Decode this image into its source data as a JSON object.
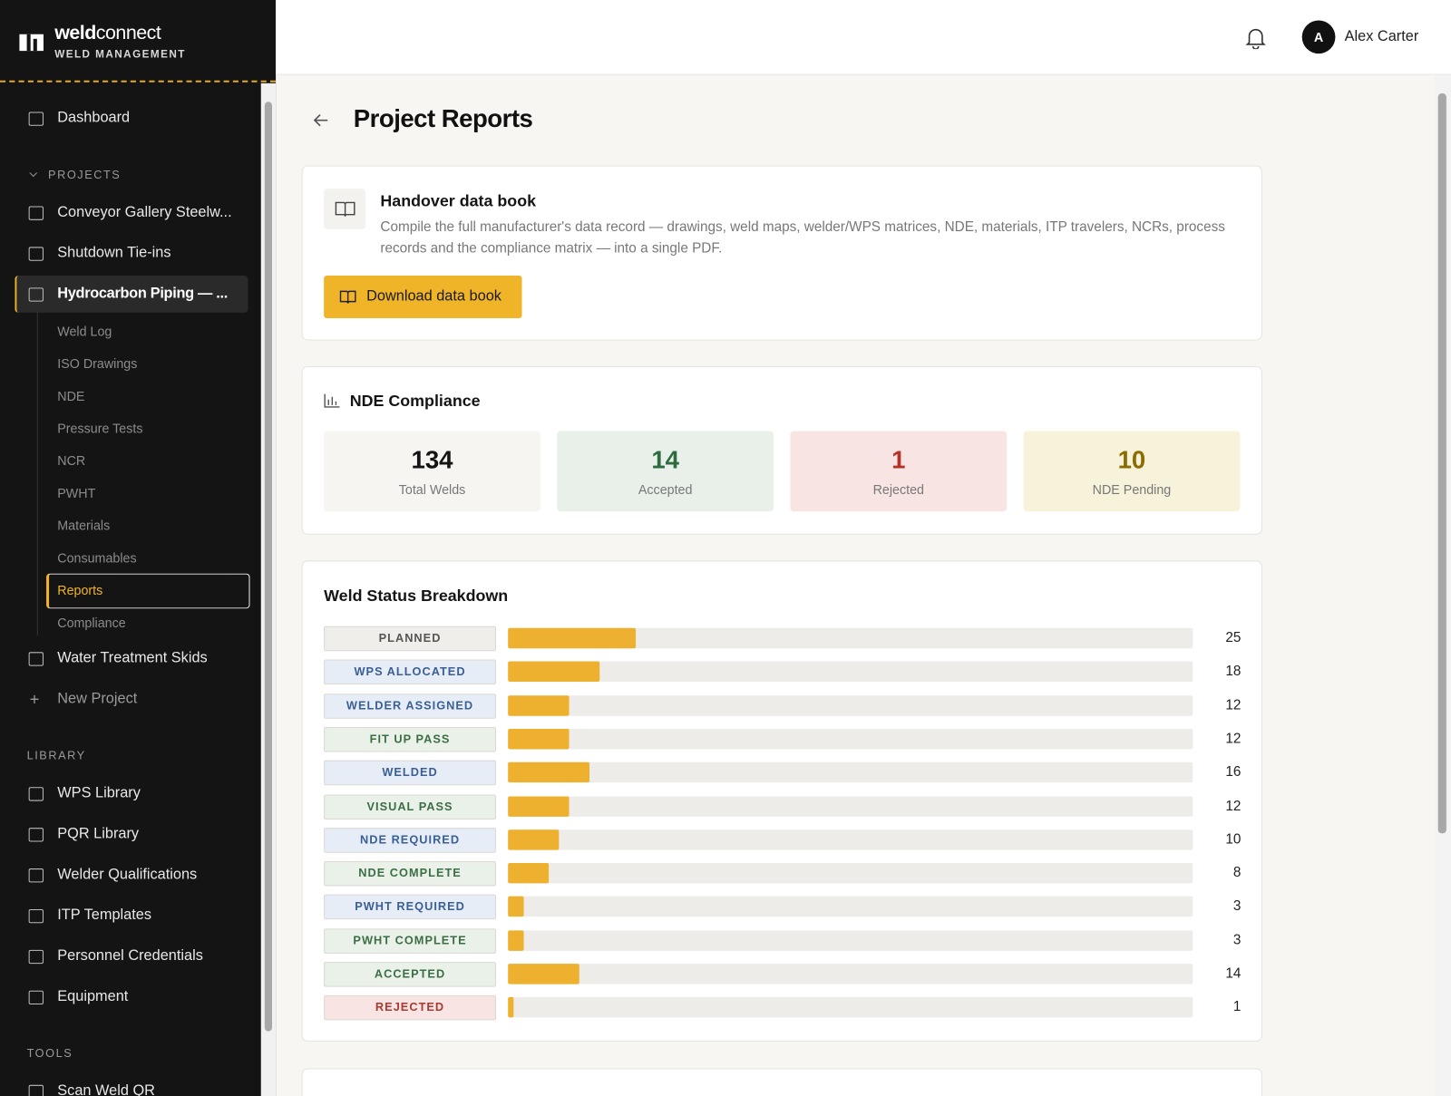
{
  "brand": {
    "name_bold": "weld",
    "name_rest": "connect",
    "subtitle": "WELD MANAGEMENT"
  },
  "user": {
    "initial": "A",
    "name": "Alex Carter"
  },
  "sidebar": {
    "dashboard": "Dashboard",
    "projects_label": "PROJECTS",
    "projects": [
      {
        "name": "Conveyor Gallery Steelw..."
      },
      {
        "name": "Shutdown Tie-ins"
      },
      {
        "name": "Hydrocarbon Piping — ...",
        "subpages": [
          "Weld Log",
          "ISO Drawings",
          "NDE",
          "Pressure Tests",
          "NCR",
          "PWHT",
          "Materials",
          "Consumables",
          "Reports",
          "Compliance"
        ]
      },
      {
        "name": "Water Treatment Skids"
      }
    ],
    "new_project": "New Project",
    "library_label": "LIBRARY",
    "library": [
      "WPS Library",
      "PQR Library",
      "Welder Qualifications",
      "ITP Templates",
      "Personnel Credentials",
      "Equipment"
    ],
    "tools_label": "TOOLS",
    "tools": [
      "Scan Weld QR"
    ]
  },
  "page": {
    "title": "Project Reports"
  },
  "handover": {
    "title": "Handover data book",
    "description": "Compile the full manufacturer's data record — drawings, weld maps, welder/WPS matrices, NDE, materials, ITP travelers, NCRs, process records and the compliance matrix — into a single PDF.",
    "button": "Download data book"
  },
  "nde": {
    "title": "NDE Compliance",
    "stats": [
      {
        "value": 134,
        "label": "Total Welds",
        "color": "#151515",
        "background": "#f6f5f2"
      },
      {
        "value": 14,
        "label": "Accepted",
        "color": "#2e6b3f",
        "background": "#e9f0ea"
      },
      {
        "value": 1,
        "label": "Rejected",
        "color": "#b3332a",
        "background": "#f8e5e3"
      },
      {
        "value": 10,
        "label": "NDE Pending",
        "color": "#8a6d00",
        "background": "#f7f2da"
      }
    ]
  },
  "weld_status": {
    "title": "Weld Status Breakdown",
    "bar_color": "#eeb02f",
    "rows": [
      {
        "status": "PLANNED",
        "count": 25,
        "color": "#555555",
        "background": "#efeeeb"
      },
      {
        "status": "WPS ALLOCATED",
        "count": 18,
        "color": "#3a5f95",
        "background": "#e6edf7"
      },
      {
        "status": "WELDER ASSIGNED",
        "count": 12,
        "color": "#3a5f95",
        "background": "#e6edf7"
      },
      {
        "status": "FIT UP PASS",
        "count": 12,
        "color": "#3c6e46",
        "background": "#e9f1e9"
      },
      {
        "status": "WELDED",
        "count": 16,
        "color": "#3a5f95",
        "background": "#e6edf7"
      },
      {
        "status": "VISUAL PASS",
        "count": 12,
        "color": "#3c6e46",
        "background": "#e9f1e9"
      },
      {
        "status": "NDE REQUIRED",
        "count": 10,
        "color": "#3a5f95",
        "background": "#e6edf7"
      },
      {
        "status": "NDE COMPLETE",
        "count": 8,
        "color": "#3c6e46",
        "background": "#e9f1e9"
      },
      {
        "status": "PWHT REQUIRED",
        "count": 3,
        "color": "#3a5f95",
        "background": "#e6edf7"
      },
      {
        "status": "PWHT COMPLETE",
        "count": 3,
        "color": "#3c6e46",
        "background": "#e9f1e9"
      },
      {
        "status": "ACCEPTED",
        "count": 14,
        "color": "#3c6e46",
        "background": "#e9f1e9"
      },
      {
        "status": "REJECTED",
        "count": 1,
        "color": "#a83a32",
        "background": "#f8e5e3"
      }
    ]
  }
}
